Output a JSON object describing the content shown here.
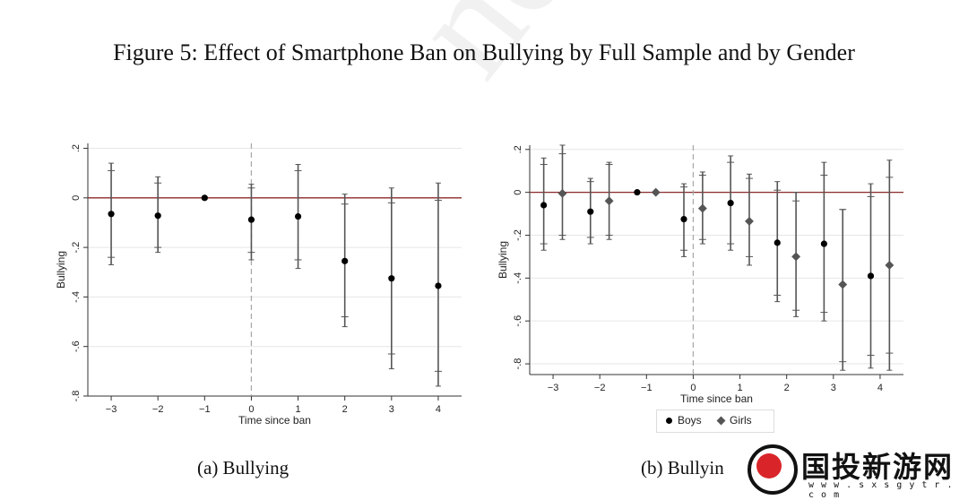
{
  "figure": {
    "title": "Figure 5: Effect of Smartphone Ban on Bullying by Full Sample and by Gender",
    "caption_a": "(a) Bullying",
    "caption_b": "(b) Bullyin"
  },
  "legend": {
    "boys": "Boys",
    "girls": "Girls"
  },
  "watermark": {
    "logo_text": "国投新游网",
    "logo_url": "w w w . s x s g y t r . c o m"
  },
  "colors": {
    "zero_line": "#8b2a2a",
    "points_boys": "#000000",
    "points_girls": "#555555",
    "ci": "#555555",
    "grid": "#e6e6e6",
    "vline": "#aaaaaa"
  },
  "chart_data": [
    {
      "type": "scatter",
      "title": "",
      "xlabel": "Time since ban",
      "ylabel": "Bullying",
      "xlim": [
        -3.5,
        4.5
      ],
      "ylim": [
        -0.8,
        0.22
      ],
      "xticks": [
        -3,
        -2,
        -1,
        0,
        1,
        2,
        3,
        4
      ],
      "yticks": [
        0.2,
        0,
        -0.2,
        -0.4,
        -0.6,
        -0.8
      ],
      "ytick_labels": [
        ".2",
        "0",
        "-.2",
        "-.4",
        "-.6",
        "-.8"
      ],
      "grid": true,
      "vline_at": 0,
      "series": [
        {
          "x": [
            -3,
            -2,
            -1,
            0,
            1,
            2,
            3,
            4
          ],
          "y": [
            -0.065,
            -0.072,
            0.0,
            -0.088,
            -0.075,
            -0.255,
            -0.325,
            -0.355
          ],
          "ci90": [
            [
              -0.24,
              0.11
            ],
            [
              -0.2,
              0.06
            ],
            [
              0.0,
              0.0
            ],
            [
              -0.22,
              0.04
            ],
            [
              -0.25,
              0.11
            ],
            [
              -0.48,
              -0.025
            ],
            [
              -0.63,
              -0.02
            ],
            [
              -0.7,
              -0.01
            ]
          ],
          "ci95": [
            [
              -0.27,
              0.14
            ],
            [
              -0.22,
              0.085
            ],
            [
              0.0,
              0.0
            ],
            [
              -0.25,
              0.055
            ],
            [
              -0.285,
              0.135
            ],
            [
              -0.52,
              0.015
            ],
            [
              -0.69,
              0.04
            ],
            [
              -0.76,
              0.06
            ]
          ]
        }
      ]
    },
    {
      "type": "scatter",
      "title": "",
      "xlabel": "Time since ban",
      "ylabel": "Bullying",
      "xlim": [
        -3.5,
        4.5
      ],
      "ylim": [
        -0.85,
        0.22
      ],
      "xticks": [
        -3,
        -2,
        -1,
        0,
        1,
        2,
        3,
        4
      ],
      "yticks": [
        0.2,
        0,
        -0.2,
        -0.4,
        -0.6,
        -0.8
      ],
      "ytick_labels": [
        ".2",
        "0",
        "-.2",
        "-.4",
        "-.6",
        "-.8"
      ],
      "grid": true,
      "vline_at": 0,
      "legend_position": "bottom",
      "series": [
        {
          "name": "Boys",
          "x": [
            -3,
            -2,
            -1,
            0,
            1,
            2,
            3,
            4
          ],
          "y": [
            -0.06,
            -0.09,
            0.0,
            -0.125,
            -0.05,
            -0.235,
            -0.24,
            -0.39
          ],
          "ci90": [
            [
              -0.24,
              0.13
            ],
            [
              -0.21,
              0.05
            ],
            [
              0.0,
              0.0
            ],
            [
              -0.27,
              0.025
            ],
            [
              -0.24,
              0.14
            ],
            [
              -0.48,
              0.01
            ],
            [
              -0.56,
              0.08
            ],
            [
              -0.76,
              -0.02
            ]
          ],
          "ci95": [
            [
              -0.27,
              0.16
            ],
            [
              -0.24,
              0.065
            ],
            [
              0.0,
              0.0
            ],
            [
              -0.3,
              0.04
            ],
            [
              -0.27,
              0.17
            ],
            [
              -0.51,
              0.05
            ],
            [
              -0.6,
              0.14
            ],
            [
              -0.82,
              0.04
            ]
          ]
        },
        {
          "name": "Girls",
          "x": [
            -3,
            -2,
            -1,
            0,
            1,
            2,
            3,
            4
          ],
          "y": [
            -0.005,
            -0.04,
            0.0,
            -0.075,
            -0.135,
            -0.3,
            -0.43,
            -0.34
          ],
          "ci90": [
            [
              -0.2,
              0.18
            ],
            [
              -0.2,
              0.13
            ],
            [
              0.0,
              0.0
            ],
            [
              -0.22,
              0.08
            ],
            [
              -0.3,
              0.065
            ],
            [
              -0.55,
              -0.04
            ],
            [
              -0.79,
              -0.08
            ],
            [
              -0.75,
              0.07
            ]
          ],
          "ci95": [
            [
              -0.22,
              0.22
            ],
            [
              -0.22,
              0.14
            ],
            [
              0.0,
              0.0
            ],
            [
              -0.24,
              0.095
            ],
            [
              -0.34,
              0.085
            ],
            [
              -0.58,
              0.0
            ],
            [
              -0.83,
              -0.08
            ],
            [
              -0.83,
              0.15
            ]
          ]
        }
      ]
    }
  ]
}
